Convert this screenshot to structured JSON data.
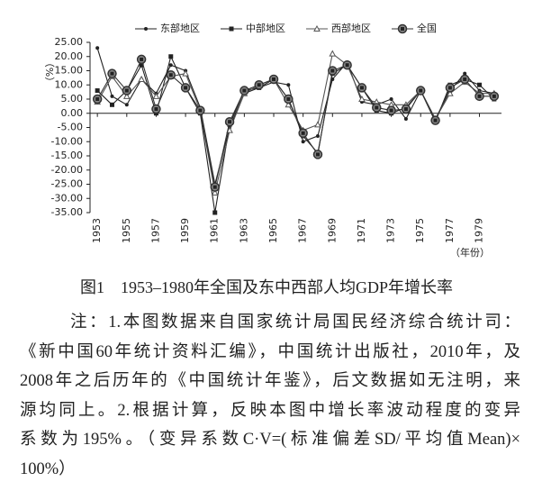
{
  "chart_data": {
    "type": "line",
    "x": [
      1953,
      1954,
      1955,
      1956,
      1957,
      1958,
      1959,
      1960,
      1961,
      1962,
      1963,
      1964,
      1965,
      1966,
      1967,
      1968,
      1969,
      1970,
      1971,
      1972,
      1973,
      1974,
      1975,
      1976,
      1977,
      1978,
      1979,
      1980
    ],
    "xlim": [
      1952.5,
      1980.5
    ],
    "xticks": [
      1953,
      1955,
      1957,
      1959,
      1961,
      1963,
      1965,
      1967,
      1969,
      1971,
      1973,
      1975,
      1977,
      1979
    ],
    "x_label": "（年份）",
    "y_label": "（%）",
    "ylim": [
      -35,
      25
    ],
    "yticks": [
      {
        "value": 25,
        "label": "25.00"
      },
      {
        "value": 20,
        "label": "20.00"
      },
      {
        "value": 15,
        "label": "15.00"
      },
      {
        "value": 10,
        "label": "10.00"
      },
      {
        "value": 5,
        "label": "5.00"
      },
      {
        "value": 0,
        "label": "0.00"
      },
      {
        "value": -5,
        "label": "-5.00"
      },
      {
        "value": -10,
        "label": "-10.00"
      },
      {
        "value": -15,
        "label": "-15.00"
      },
      {
        "value": -20,
        "label": "-20.00"
      },
      {
        "value": -25,
        "label": "-25.00"
      },
      {
        "value": -30,
        "label": "-30.00"
      },
      {
        "value": -35,
        "label": "-35.00"
      }
    ],
    "legend": "top",
    "series": [
      {
        "name": "东部地区",
        "color": "#222",
        "marker": "dot",
        "values": [
          23,
          6,
          3,
          12,
          7,
          17,
          15,
          2,
          -25,
          -5,
          7,
          9,
          11,
          10,
          -10,
          -8,
          12,
          18,
          4,
          3,
          5,
          -2,
          8,
          -2,
          8,
          14,
          8,
          7
        ]
      },
      {
        "name": "中部地区",
        "color": "#222",
        "marker": "square",
        "values": [
          8,
          3,
          8,
          17,
          0,
          20,
          9,
          0,
          -35,
          -4,
          8,
          9,
          12,
          5,
          -8,
          -14,
          14,
          17,
          9,
          1,
          0,
          2,
          8,
          -3,
          10,
          12,
          10,
          5
        ]
      },
      {
        "name": "西部地区",
        "color": "#555",
        "marker": "triangle",
        "values": [
          4,
          13,
          6,
          12,
          6,
          13,
          14,
          1,
          -28,
          -6,
          7,
          10,
          12,
          3,
          -6,
          -4,
          21,
          17,
          5,
          4,
          3,
          3,
          8,
          -2,
          7,
          11,
          7,
          7
        ]
      },
      {
        "name": "全国",
        "color": "#333",
        "marker": "circle-square",
        "values": [
          5,
          14,
          8,
          19,
          1.5,
          13.5,
          9,
          1,
          -26,
          -3,
          8,
          10,
          12,
          5,
          -7,
          -14.5,
          15,
          17,
          9,
          2,
          1,
          1.5,
          8,
          -2.5,
          9,
          12,
          6,
          6
        ]
      }
    ]
  },
  "caption": "图1　1953–1980年全国及东中西部人均GDP年增长率",
  "notes": [
    "注：1.本图数据来自国家统计局国民经济综合统计司：",
    "《新中国60年统计资料汇编》，中国统计出版社，2010年，及",
    "2008年之后历年的《中国统计年鉴》，后文数据如无注明，来",
    "源均同上。2.根据计算，反映本图中增长率波动程度的变异",
    "系数为195%。（变异系数C·V=(标准偏差SD/平均值Mean)×",
    "100%）"
  ]
}
